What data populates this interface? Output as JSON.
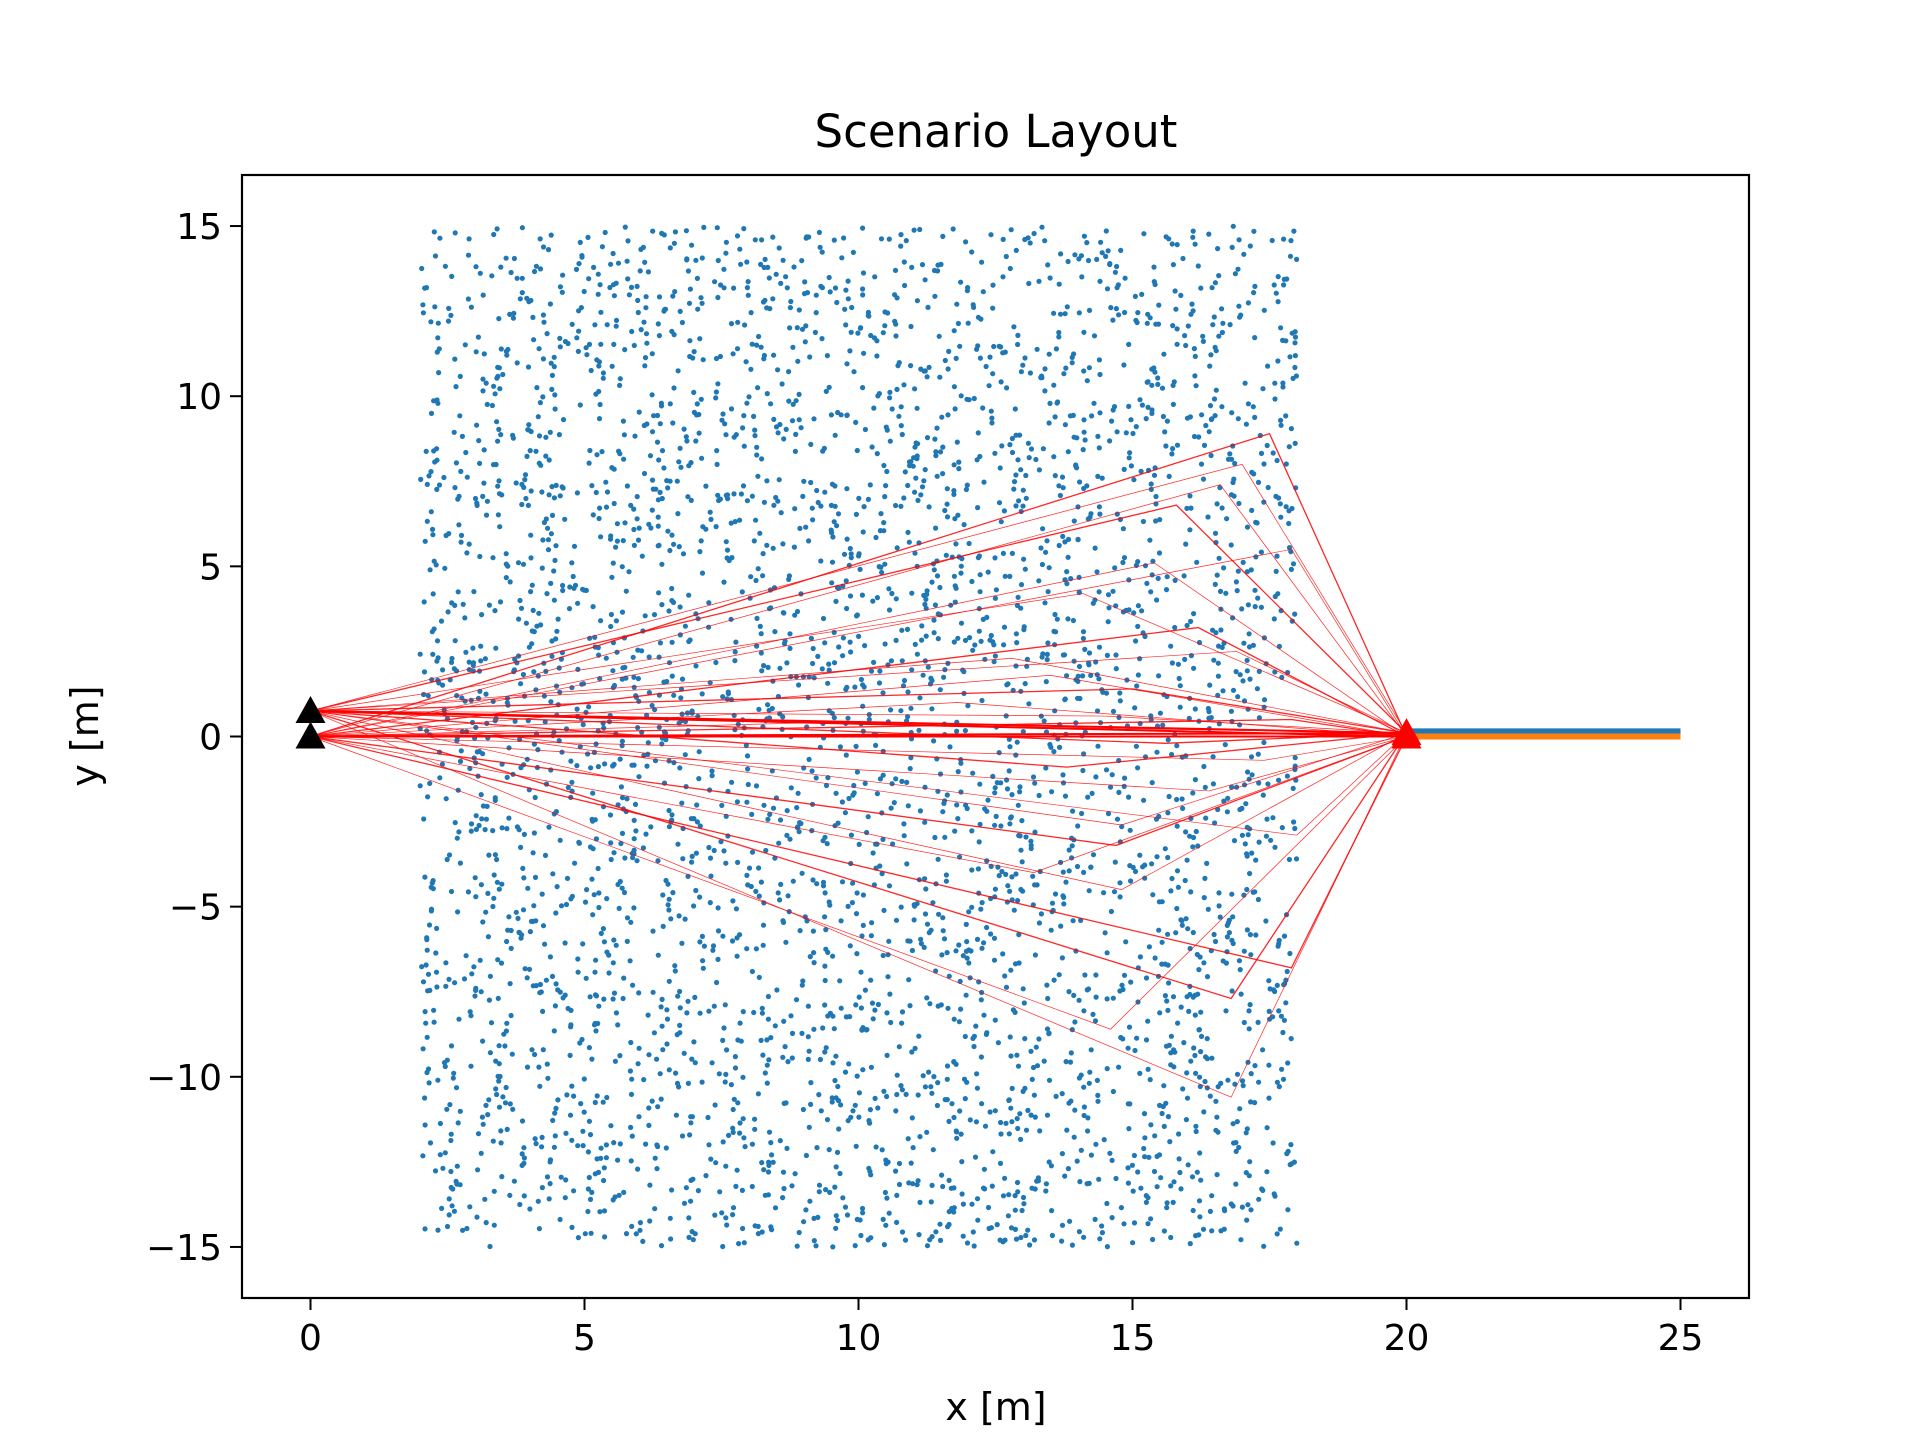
{
  "chart_data": {
    "type": "scatter",
    "title": "Scenario Layout",
    "xlabel": "x [m]",
    "ylabel": "y [m]",
    "xlim": [
      -1.25,
      26.25
    ],
    "ylim": [
      -16.5,
      16.5
    ],
    "xticks": [
      0,
      5,
      10,
      15,
      20,
      25
    ],
    "yticks": [
      -15,
      -10,
      -5,
      0,
      5,
      10,
      15
    ],
    "grid": false,
    "legend": "none",
    "colors": {
      "scatterers": "#1f77b4",
      "paths": "#ff0000",
      "transmitters": "#000000",
      "receivers": "#ff0000",
      "rx_line_1": "#1f77b4",
      "rx_line_2": "#ff7f0e"
    },
    "scatterers": {
      "count": 4000,
      "x_range": [
        2,
        18
      ],
      "y_range": [
        -15,
        15
      ],
      "distribution": "uniform"
    },
    "transmitters": [
      {
        "x": 0,
        "y": 0
      },
      {
        "x": 0,
        "y": 0.75
      }
    ],
    "receivers": [
      {
        "x": 20,
        "y": 0
      },
      {
        "x": 20,
        "y": 0.1
      }
    ],
    "rx_lines": [
      {
        "x": [
          20,
          25
        ],
        "y": [
          0.15,
          0.15
        ]
      },
      {
        "x": [
          20,
          25
        ],
        "y": [
          0,
          0
        ]
      }
    ],
    "path_points": [
      [
        17.5,
        8.9
      ],
      [
        17.0,
        8.0
      ],
      [
        16.6,
        7.4
      ],
      [
        15.8,
        6.8
      ],
      [
        15.4,
        5.1
      ],
      [
        14.1,
        4.2
      ],
      [
        16.2,
        3.2
      ],
      [
        12.8,
        2.3
      ],
      [
        13.5,
        1.8
      ],
      [
        15.0,
        1.4
      ],
      [
        11.8,
        1.0
      ],
      [
        14.5,
        0.6
      ],
      [
        17.9,
        0.5
      ],
      [
        12.2,
        0.3
      ],
      [
        9.0,
        0.4
      ],
      [
        13.8,
        -0.9
      ],
      [
        16.4,
        -1.6
      ],
      [
        14.8,
        -2.6
      ],
      [
        14.7,
        -3.2
      ],
      [
        14.8,
        -4.5
      ],
      [
        13.2,
        -4.0
      ],
      [
        16.8,
        -7.7
      ],
      [
        14.6,
        -8.6
      ],
      [
        16.8,
        -10.6
      ],
      [
        17.9,
        -6.8
      ],
      [
        18.0,
        -2.9
      ],
      [
        17.4,
        -0.7
      ],
      [
        15.6,
        -0.2
      ],
      [
        17.9,
        5.5
      ],
      [
        16.9,
        2.5
      ]
    ]
  }
}
